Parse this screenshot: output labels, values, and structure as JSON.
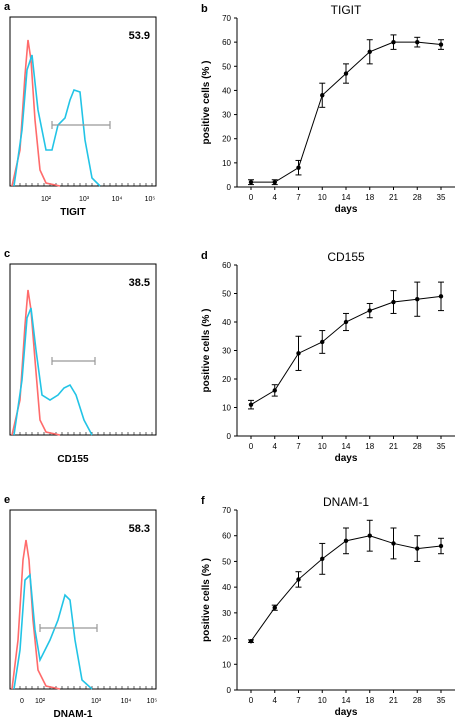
{
  "chart_data": [
    {
      "type": "histogram",
      "panel": "a",
      "xlabel": "TIGIT",
      "percent_label": "53.9",
      "x_scale": "log",
      "xticks": [
        "10²",
        "10³",
        "10⁴",
        "10⁵"
      ],
      "series": [
        {
          "color": "#ff6b6b",
          "role": "control"
        },
        {
          "color": "#22c4e6",
          "role": "stained"
        }
      ]
    },
    {
      "type": "line",
      "panel": "b",
      "title": "TIGIT",
      "xlabel": "days",
      "ylabel": "positive cells (% )",
      "categories": [
        "0",
        "4",
        "7",
        "10",
        "14",
        "18",
        "21",
        "28",
        "35"
      ],
      "values": [
        2,
        2,
        8,
        38,
        47,
        56,
        60,
        60,
        59
      ],
      "errors": [
        1,
        1,
        3,
        5,
        4,
        5,
        3,
        2,
        2
      ],
      "ylim": [
        0,
        70
      ],
      "yticks": [
        0,
        10,
        20,
        30,
        40,
        50,
        60,
        70
      ]
    },
    {
      "type": "histogram",
      "panel": "c",
      "xlabel": "CD155",
      "percent_label": "38.5",
      "x_scale": "log",
      "series": [
        {
          "color": "#ff6b6b",
          "role": "control"
        },
        {
          "color": "#22c4e6",
          "role": "stained"
        }
      ]
    },
    {
      "type": "line",
      "panel": "d",
      "title": "CD155",
      "xlabel": "days",
      "ylabel": "positive cells (% )",
      "categories": [
        "0",
        "4",
        "7",
        "10",
        "14",
        "18",
        "21",
        "28",
        "35"
      ],
      "values": [
        11,
        16,
        29,
        33,
        40,
        44,
        47,
        48,
        49
      ],
      "errors": [
        1.5,
        2,
        6,
        4,
        3,
        2.5,
        4,
        6,
        5
      ],
      "ylim": [
        0,
        60
      ],
      "yticks": [
        0,
        10,
        20,
        30,
        40,
        50,
        60
      ]
    },
    {
      "type": "histogram",
      "panel": "e",
      "xlabel": "DNAM-1",
      "percent_label": "58.3",
      "x_scale": "log",
      "xticks": [
        "0",
        "10²",
        "10³",
        "10⁴",
        "10⁵"
      ],
      "series": [
        {
          "color": "#ff6b6b",
          "role": "control"
        },
        {
          "color": "#22c4e6",
          "role": "stained"
        }
      ]
    },
    {
      "type": "line",
      "panel": "f",
      "title": "DNAM-1",
      "xlabel": "days",
      "ylabel": "positive cells (% )",
      "categories": [
        "0",
        "4",
        "7",
        "10",
        "14",
        "18",
        "21",
        "28",
        "35"
      ],
      "values": [
        19,
        32,
        43,
        51,
        58,
        60,
        57,
        55,
        56
      ],
      "errors": [
        0.5,
        1,
        3,
        6,
        5,
        6,
        6,
        5,
        3
      ],
      "ylim": [
        0,
        70
      ],
      "yticks": [
        0,
        10,
        20,
        30,
        40,
        50,
        60,
        70
      ]
    }
  ]
}
